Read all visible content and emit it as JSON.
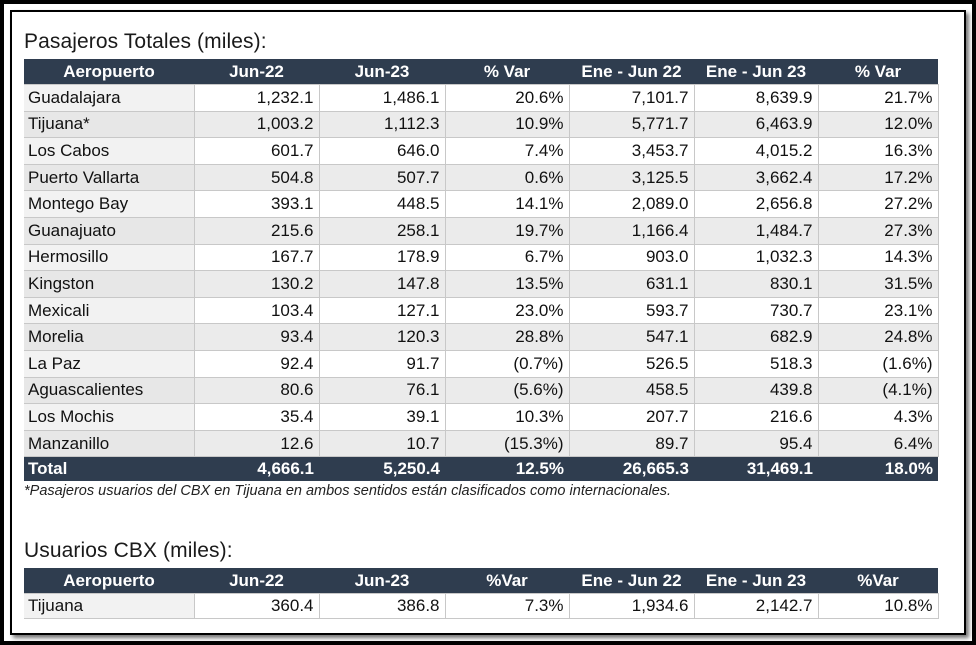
{
  "pasajeros": {
    "title": "Pasajeros Totales (miles):",
    "headers": [
      "Aeropuerto",
      "Jun-22",
      "Jun-23",
      "% Var",
      "Ene - Jun 22",
      "Ene - Jun 23",
      "% Var"
    ],
    "rows": [
      [
        "Guadalajara",
        "1,232.1",
        "1,486.1",
        "20.6%",
        "7,101.7",
        "8,639.9",
        "21.7%"
      ],
      [
        "Tijuana*",
        "1,003.2",
        "1,112.3",
        "10.9%",
        "5,771.7",
        "6,463.9",
        "12.0%"
      ],
      [
        "Los Cabos",
        "601.7",
        "646.0",
        "7.4%",
        "3,453.7",
        "4,015.2",
        "16.3%"
      ],
      [
        "Puerto Vallarta",
        "504.8",
        "507.7",
        "0.6%",
        "3,125.5",
        "3,662.4",
        "17.2%"
      ],
      [
        "Montego Bay",
        "393.1",
        "448.5",
        "14.1%",
        "2,089.0",
        "2,656.8",
        "27.2%"
      ],
      [
        "Guanajuato",
        "215.6",
        "258.1",
        "19.7%",
        "1,166.4",
        "1,484.7",
        "27.3%"
      ],
      [
        "Hermosillo",
        "167.7",
        "178.9",
        "6.7%",
        "903.0",
        "1,032.3",
        "14.3%"
      ],
      [
        "Kingston",
        "130.2",
        "147.8",
        "13.5%",
        "631.1",
        "830.1",
        "31.5%"
      ],
      [
        "Mexicali",
        "103.4",
        "127.1",
        "23.0%",
        "593.7",
        "730.7",
        "23.1%"
      ],
      [
        "Morelia",
        "93.4",
        "120.3",
        "28.8%",
        "547.1",
        "682.9",
        "24.8%"
      ],
      [
        "La Paz",
        "92.4",
        "91.7",
        "(0.7%)",
        "526.5",
        "518.3",
        "(1.6%)"
      ],
      [
        "Aguascalientes",
        "80.6",
        "76.1",
        "(5.6%)",
        "458.5",
        "439.8",
        "(4.1%)"
      ],
      [
        "Los Mochis",
        "35.4",
        "39.1",
        "10.3%",
        "207.7",
        "216.6",
        "4.3%"
      ],
      [
        "Manzanillo",
        "12.6",
        "10.7",
        "(15.3%)",
        "89.7",
        "95.4",
        "6.4%"
      ]
    ],
    "total": [
      "Total",
      "4,666.1",
      "5,250.4",
      "12.5%",
      "26,665.3",
      "31,469.1",
      "18.0%"
    ],
    "footnote": "*Pasajeros usuarios del CBX en Tijuana en ambos sentidos están clasificados como internacionales."
  },
  "cbx": {
    "title": "Usuarios CBX (miles):",
    "headers": [
      "Aeropuerto",
      "Jun-22",
      "Jun-23",
      "%Var",
      "Ene - Jun 22",
      "Ene - Jun 23",
      "%Var"
    ],
    "rows": [
      [
        "Tijuana",
        "360.4",
        "386.8",
        "7.3%",
        "1,934.6",
        "2,142.7",
        "10.8%"
      ]
    ]
  },
  "colors": {
    "header_bg": "#2f3d4f",
    "header_text": "#ffffff",
    "row_alt": "#ebebeb"
  }
}
